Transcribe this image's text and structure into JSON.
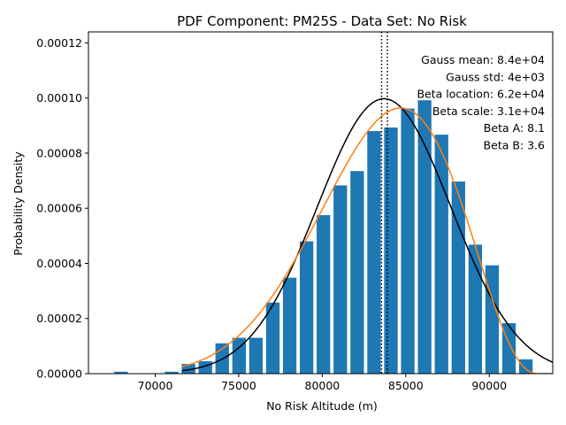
{
  "chart_data": {
    "type": "bar",
    "title": "PDF Component: PM25S - Data Set: No Risk",
    "xlabel": "No Risk Altitude (m)",
    "ylabel": "Probability Density",
    "xlim": [
      66000,
      93800
    ],
    "ylim": [
      0,
      0.000124
    ],
    "grid": false,
    "x_ticks": [
      70000,
      75000,
      80000,
      85000,
      90000
    ],
    "x_tick_labels": [
      "70000",
      "75000",
      "80000",
      "85000",
      "90000"
    ],
    "y_ticks": [
      0,
      2e-05,
      4e-05,
      6e-05,
      8e-05,
      0.0001,
      0.00012
    ],
    "y_tick_labels": [
      "0.00000",
      "0.00002",
      "0.00004",
      "0.00006",
      "0.00008",
      "0.00010",
      "0.00012"
    ],
    "bar_color": "#1f77b4",
    "bar_width": 810,
    "bars": [
      {
        "x": 67950,
        "y": 7e-07
      },
      {
        "x": 68960,
        "y": 0
      },
      {
        "x": 69970,
        "y": 0
      },
      {
        "x": 70980,
        "y": 7e-07
      },
      {
        "x": 71990,
        "y": 3.5e-06
      },
      {
        "x": 73000,
        "y": 4.5e-06
      },
      {
        "x": 74010,
        "y": 1.1e-05
      },
      {
        "x": 75020,
        "y": 1.3e-05
      },
      {
        "x": 76030,
        "y": 1.3e-05
      },
      {
        "x": 77040,
        "y": 2.58e-05
      },
      {
        "x": 78050,
        "y": 3.48e-05
      },
      {
        "x": 79060,
        "y": 4.8e-05
      },
      {
        "x": 80070,
        "y": 5.75e-05
      },
      {
        "x": 81080,
        "y": 6.83e-05
      },
      {
        "x": 82090,
        "y": 7.35e-05
      },
      {
        "x": 83100,
        "y": 8.8e-05
      },
      {
        "x": 84110,
        "y": 8.93e-05
      },
      {
        "x": 85120,
        "y": 9.62e-05
      },
      {
        "x": 86130,
        "y": 9.92e-05
      },
      {
        "x": 87140,
        "y": 8.67e-05
      },
      {
        "x": 88150,
        "y": 6.97e-05
      },
      {
        "x": 89160,
        "y": 4.68e-05
      },
      {
        "x": 90170,
        "y": 3.93e-05
      },
      {
        "x": 91180,
        "y": 1.83e-05
      },
      {
        "x": 92190,
        "y": 5.2e-06
      }
    ],
    "series": [
      {
        "kind": "gauss",
        "color": "#000000",
        "mean": 83700,
        "std": 4000,
        "x_range": [
          71600,
          93800
        ]
      },
      {
        "kind": "beta",
        "color": "#ff7f0e",
        "a": 8.1,
        "b": 3.6,
        "loc": 62000,
        "scale": 31000,
        "x_range": [
          71600,
          93800
        ]
      }
    ],
    "vlines": [
      {
        "x": 83550,
        "style": "dotted",
        "color": "#000000"
      },
      {
        "x": 83900,
        "style": "dotted",
        "color": "#000000"
      }
    ],
    "annotations": [
      "Gauss mean: 8.4e+04",
      "Gauss std: 4e+03",
      "Beta location: 6.2e+04",
      "Beta scale: 3.1e+04",
      "Beta A: 8.1",
      "Beta B: 3.6"
    ]
  }
}
